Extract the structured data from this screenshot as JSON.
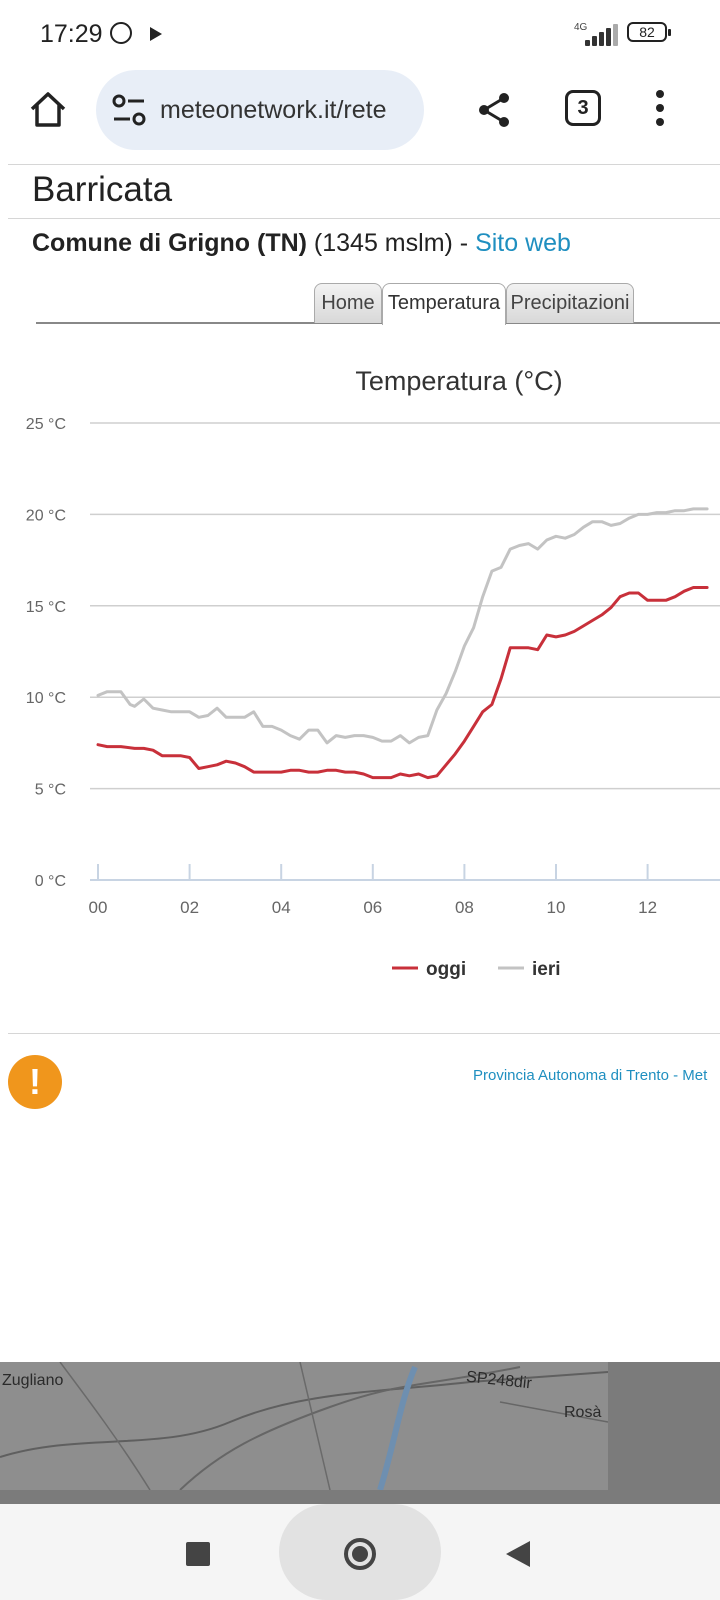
{
  "status_bar": {
    "time": "17:29",
    "network": "4G",
    "battery": "82"
  },
  "browser": {
    "url": "meteonetwork.it/rete",
    "tab_count": "3"
  },
  "page": {
    "station_name": "Barricata",
    "municipality": "Comune di Grigno (TN)",
    "altitude": "(1345 mslm) -",
    "website_link": "Sito web",
    "tabs": [
      {
        "label": "Home"
      },
      {
        "label": "Temperatura"
      },
      {
        "label": "Precipitazioni"
      }
    ],
    "footer_note": "Provincia Autonoma di Trento - Met"
  },
  "map": {
    "labels": [
      "Zugliano",
      "SP248dir",
      "Rosà"
    ]
  },
  "colors": {
    "oggi": "#c8303a",
    "ieri": "#c3c3c3",
    "link": "#1f8fc0",
    "warning": "#f0961c"
  },
  "chart_data": {
    "type": "line",
    "title": "Temperatura (°C)",
    "xlabel": "",
    "ylabel": "",
    "y_ticks": [
      "0 °C",
      "5 °C",
      "10 °C",
      "15 °C",
      "20 °C",
      "25 °C"
    ],
    "x_ticks": [
      "00",
      "02",
      "04",
      "06",
      "08",
      "10",
      "12"
    ],
    "ylim": [
      0,
      25
    ],
    "xlim": [
      0,
      13.3
    ],
    "grid": true,
    "legend_position": "bottom",
    "series": [
      {
        "name": "oggi",
        "x": [
          0,
          0.2,
          0.5,
          0.8,
          1.0,
          1.2,
          1.4,
          1.6,
          1.8,
          2.0,
          2.2,
          2.4,
          2.6,
          2.8,
          3.0,
          3.2,
          3.4,
          3.6,
          3.8,
          4.0,
          4.2,
          4.4,
          4.6,
          4.8,
          5.0,
          5.2,
          5.4,
          5.6,
          5.8,
          6.0,
          6.2,
          6.4,
          6.6,
          6.8,
          7.0,
          7.2,
          7.4,
          7.6,
          7.8,
          8.0,
          8.2,
          8.4,
          8.6,
          8.8,
          9.0,
          9.2,
          9.4,
          9.6,
          9.8,
          10.0,
          10.2,
          10.4,
          10.6,
          10.8,
          11.0,
          11.2,
          11.4,
          11.6,
          11.8,
          12.0,
          12.2,
          12.4,
          12.6,
          12.8,
          13.0,
          13.2,
          13.3
        ],
        "values": [
          7.4,
          7.3,
          7.3,
          7.2,
          7.2,
          7.1,
          6.8,
          6.8,
          6.8,
          6.7,
          6.1,
          6.2,
          6.3,
          6.5,
          6.4,
          6.2,
          5.9,
          5.9,
          5.9,
          5.9,
          6.0,
          6.0,
          5.9,
          5.9,
          6.0,
          6.0,
          5.9,
          5.9,
          5.8,
          5.6,
          5.6,
          5.6,
          5.8,
          5.7,
          5.8,
          5.6,
          5.7,
          6.3,
          6.9,
          7.6,
          8.4,
          9.2,
          9.6,
          11.0,
          12.7,
          12.7,
          12.7,
          12.6,
          13.4,
          13.3,
          13.4,
          13.6,
          13.9,
          14.2,
          14.5,
          14.9,
          15.5,
          15.7,
          15.7,
          15.3,
          15.3,
          15.3,
          15.5,
          15.8,
          16.0,
          16.0,
          16.0
        ]
      },
      {
        "name": "ieri",
        "x": [
          0,
          0.2,
          0.5,
          0.7,
          0.8,
          1.0,
          1.2,
          1.4,
          1.6,
          1.8,
          2.0,
          2.2,
          2.4,
          2.6,
          2.8,
          3.0,
          3.2,
          3.4,
          3.6,
          3.8,
          4.0,
          4.2,
          4.4,
          4.6,
          4.8,
          5.0,
          5.2,
          5.4,
          5.6,
          5.8,
          6.0,
          6.2,
          6.4,
          6.6,
          6.8,
          7.0,
          7.2,
          7.4,
          7.6,
          7.8,
          8.0,
          8.2,
          8.4,
          8.6,
          8.8,
          9.0,
          9.2,
          9.4,
          9.6,
          9.8,
          10.0,
          10.2,
          10.4,
          10.6,
          10.8,
          11.0,
          11.2,
          11.4,
          11.6,
          11.8,
          12.0,
          12.2,
          12.4,
          12.6,
          12.8,
          13.0,
          13.2,
          13.3
        ],
        "values": [
          10.1,
          10.3,
          10.3,
          9.6,
          9.5,
          9.9,
          9.4,
          9.3,
          9.2,
          9.2,
          9.2,
          8.9,
          9.0,
          9.4,
          8.9,
          8.9,
          8.9,
          9.2,
          8.4,
          8.4,
          8.2,
          7.9,
          7.7,
          8.2,
          8.2,
          7.5,
          7.9,
          7.8,
          7.9,
          7.9,
          7.8,
          7.6,
          7.6,
          7.9,
          7.5,
          7.8,
          7.9,
          9.3,
          10.2,
          11.4,
          12.8,
          13.8,
          15.5,
          16.9,
          17.1,
          18.1,
          18.3,
          18.4,
          18.1,
          18.6,
          18.8,
          18.7,
          18.9,
          19.3,
          19.6,
          19.6,
          19.4,
          19.5,
          19.8,
          20.0,
          20.0,
          20.1,
          20.1,
          20.2,
          20.2,
          20.3,
          20.3,
          20.3
        ]
      }
    ]
  }
}
